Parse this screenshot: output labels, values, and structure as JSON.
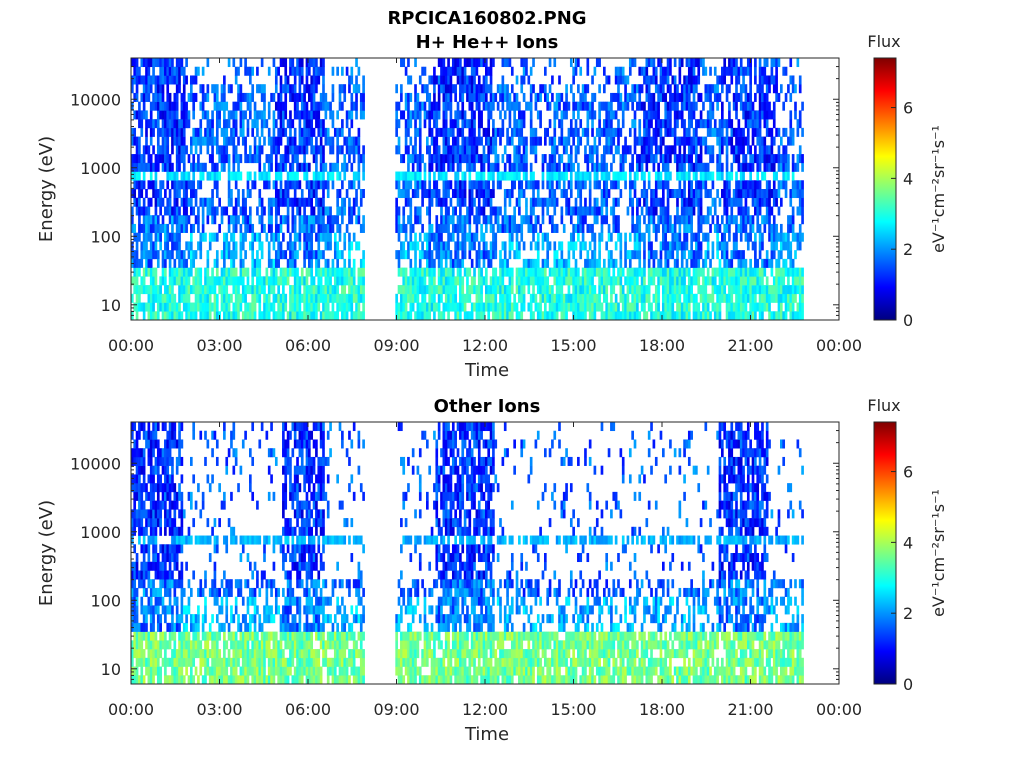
{
  "figure": {
    "title_line1": "RPCICA160802.PNG"
  },
  "colors": {
    "colormap": "jet",
    "colormap_stops": [
      "#00007f",
      "#0000ff",
      "#007fff",
      "#00ffff",
      "#7fff7f",
      "#ffff00",
      "#ff7f00",
      "#ff0000",
      "#7f0000"
    ]
  },
  "chart_data": [
    {
      "type": "heatmap",
      "title": "H+ He++ Ions",
      "xlabel": "Time",
      "ylabel": "Energy (eV)",
      "x_ticks": [
        "00:00",
        "03:00",
        "06:00",
        "09:00",
        "12:00",
        "15:00",
        "18:00",
        "21:00",
        "00:00"
      ],
      "x_range_hours": [
        0,
        24
      ],
      "y_scale": "log",
      "y_ticks": [
        "10",
        "100",
        "1000",
        "10000"
      ],
      "y_range_ev": [
        6,
        40000
      ],
      "colorbar": {
        "label": "Flux",
        "unit": "eV⁻¹cm⁻²sr⁻¹s⁻¹",
        "ticks": [
          "0",
          "2",
          "4",
          "6"
        ],
        "range": [
          0,
          7.4
        ]
      },
      "data_coverage_hours": [
        [
          0,
          7.9
        ],
        [
          9.0,
          22.8
        ]
      ],
      "dense_intervals_hours": [
        [
          0,
          1.9
        ],
        [
          4.9,
          6.6
        ],
        [
          10.1,
          12.3
        ],
        [
          17.2,
          19.4
        ],
        [
          20.0,
          21.9
        ]
      ],
      "band_1000ev_level": 2.6,
      "low_energy_level": 3.0
    },
    {
      "type": "heatmap",
      "title": "Other Ions",
      "xlabel": "Time",
      "ylabel": "Energy (eV)",
      "x_ticks": [
        "00:00",
        "03:00",
        "06:00",
        "09:00",
        "12:00",
        "15:00",
        "18:00",
        "21:00",
        "00:00"
      ],
      "x_range_hours": [
        0,
        24
      ],
      "y_scale": "log",
      "y_ticks": [
        "10",
        "100",
        "1000",
        "10000"
      ],
      "y_range_ev": [
        6,
        40000
      ],
      "colorbar": {
        "label": "Flux",
        "unit": "eV⁻¹cm⁻²sr⁻¹s⁻¹",
        "ticks": [
          "0",
          "2",
          "4",
          "6"
        ],
        "range": [
          0,
          7.4
        ]
      },
      "data_coverage_hours": [
        [
          0,
          7.9
        ],
        [
          9.0,
          22.8
        ]
      ],
      "dense_intervals_hours": [
        [
          0,
          1.8
        ],
        [
          5.1,
          6.6
        ],
        [
          10.3,
          12.3
        ],
        [
          19.9,
          21.6
        ]
      ],
      "band_1000ev_level": 2.2,
      "low_energy_level": 3.6
    }
  ]
}
